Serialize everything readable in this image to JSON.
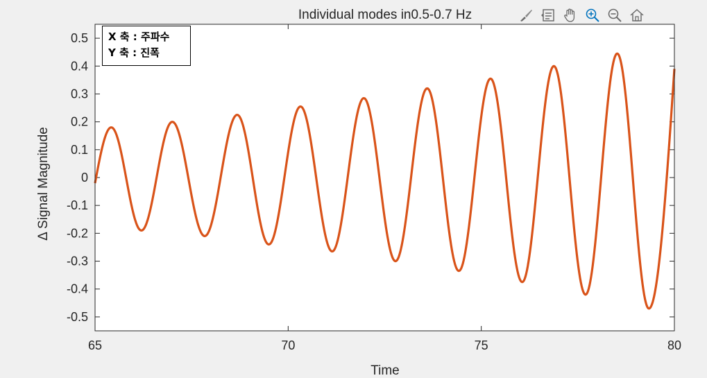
{
  "toolbar": {
    "icons": [
      "brush-icon",
      "data-tip-icon",
      "pan-hand-icon",
      "zoom-in-icon",
      "zoom-out-icon",
      "home-icon"
    ]
  },
  "annotation": {
    "line1": "X 축 : 주파수",
    "line2": "Y 축 : 진폭"
  },
  "colors": {
    "line": "#d95319",
    "axes": "#262626",
    "background": "#f0f0f0",
    "plot_bg": "#ffffff",
    "accent_blue": "#0072bd"
  },
  "chart_data": {
    "type": "line",
    "title": "Individual modes in0.5-0.7 Hz",
    "xlabel": "Time",
    "ylabel": "Δ Signal Magnitude",
    "xlim": [
      65,
      80
    ],
    "ylim": [
      -0.55,
      0.55
    ],
    "xticks": [
      65,
      70,
      75,
      80
    ],
    "xtick_labels": [
      "65",
      "70",
      "75",
      "80"
    ],
    "yticks": [
      0.5,
      0.4,
      0.3,
      0.2,
      0.1,
      0,
      -0.1,
      -0.2,
      -0.3,
      -0.4,
      -0.5
    ],
    "ytick_labels": [
      "0.5",
      "0.4",
      "0.3",
      "0.2",
      "0.1",
      "0",
      "-0.1",
      "-0.2",
      "-0.3",
      "-0.4",
      "-0.5"
    ],
    "grid": false,
    "series": [
      {
        "peaks": [
          [
            65.42,
            0.18
          ],
          [
            67.0,
            0.2
          ],
          [
            68.68,
            0.225
          ],
          [
            70.32,
            0.255
          ],
          [
            71.96,
            0.285
          ],
          [
            73.6,
            0.32
          ],
          [
            75.24,
            0.355
          ],
          [
            76.88,
            0.4
          ],
          [
            78.52,
            0.445
          ]
        ],
        "troughs": [
          [
            66.2,
            -0.19
          ],
          [
            67.84,
            -0.21
          ],
          [
            69.5,
            -0.24
          ],
          [
            71.14,
            -0.265
          ],
          [
            72.78,
            -0.3
          ],
          [
            74.42,
            -0.335
          ],
          [
            76.06,
            -0.375
          ],
          [
            77.7,
            -0.42
          ],
          [
            79.34,
            -0.47
          ]
        ],
        "start": [
          65,
          -0.02
        ],
        "end": [
          80,
          0.39
        ]
      }
    ]
  }
}
